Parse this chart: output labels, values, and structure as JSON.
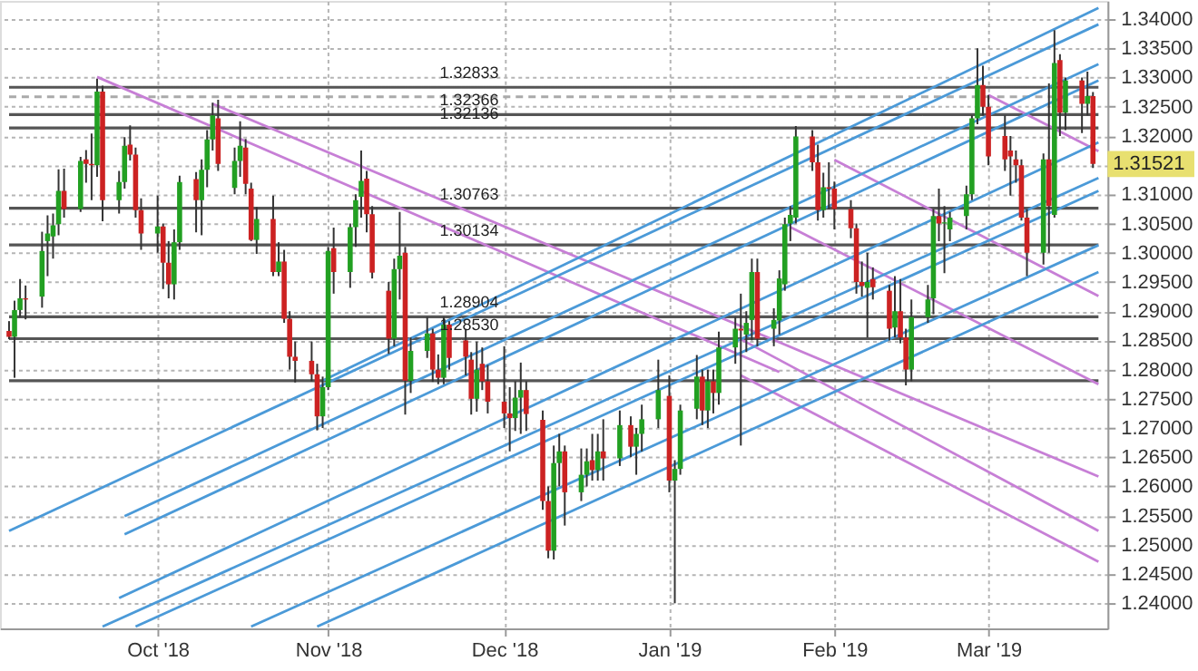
{
  "chart_data": {
    "type": "candlestick",
    "x": [
      "2018-09-04",
      "2018-09-05",
      "2018-09-06",
      "2018-09-07",
      "2018-09-10",
      "2018-09-11",
      "2018-09-12",
      "2018-09-13",
      "2018-09-14",
      "2018-09-17",
      "2018-09-18",
      "2018-09-19",
      "2018-09-20",
      "2018-09-21",
      "2018-09-24",
      "2018-09-25",
      "2018-09-26",
      "2018-09-27",
      "2018-09-28",
      "2018-10-01",
      "2018-10-02",
      "2018-10-03",
      "2018-10-04",
      "2018-10-05",
      "2018-10-08",
      "2018-10-09",
      "2018-10-10",
      "2018-10-11",
      "2018-10-12",
      "2018-10-15",
      "2018-10-16",
      "2018-10-17",
      "2018-10-18",
      "2018-10-19",
      "2018-10-22",
      "2018-10-23",
      "2018-10-24",
      "2018-10-25",
      "2018-10-26",
      "2018-10-29",
      "2018-10-30",
      "2018-10-31",
      "2018-11-01",
      "2018-11-02",
      "2018-11-05",
      "2018-11-06",
      "2018-11-07",
      "2018-11-08",
      "2018-11-09",
      "2018-11-12",
      "2018-11-13",
      "2018-11-14",
      "2018-11-15",
      "2018-11-16",
      "2018-11-19",
      "2018-11-20",
      "2018-11-21",
      "2018-11-22",
      "2018-11-23",
      "2018-11-26",
      "2018-11-27",
      "2018-11-28",
      "2018-11-29",
      "2018-11-30",
      "2018-12-03",
      "2018-12-04",
      "2018-12-05",
      "2018-12-06",
      "2018-12-07",
      "2018-12-10",
      "2018-12-11",
      "2018-12-12",
      "2018-12-13",
      "2018-12-14",
      "2018-12-17",
      "2018-12-18",
      "2018-12-19",
      "2018-12-20",
      "2018-12-21",
      "2018-12-24",
      "2018-12-26",
      "2018-12-27",
      "2018-12-28",
      "2018-12-31",
      "2019-01-02",
      "2019-01-03",
      "2019-01-04",
      "2019-01-07",
      "2019-01-08",
      "2019-01-09",
      "2019-01-10",
      "2019-01-11",
      "2019-01-14",
      "2019-01-15",
      "2019-01-16",
      "2019-01-17",
      "2019-01-18",
      "2019-01-21",
      "2019-01-22",
      "2019-01-23",
      "2019-01-24",
      "2019-01-25",
      "2019-01-28",
      "2019-01-29",
      "2019-01-30",
      "2019-01-31",
      "2019-02-01",
      "2019-02-04",
      "2019-02-05",
      "2019-02-06",
      "2019-02-07",
      "2019-02-08",
      "2019-02-11",
      "2019-02-12",
      "2019-02-13",
      "2019-02-14",
      "2019-02-15",
      "2019-02-18",
      "2019-02-19",
      "2019-02-20",
      "2019-02-21",
      "2019-02-22",
      "2019-02-25",
      "2019-02-26",
      "2019-02-27",
      "2019-02-28",
      "2019-03-01",
      "2019-03-04",
      "2019-03-05",
      "2019-03-06",
      "2019-03-07",
      "2019-03-08",
      "2019-03-11",
      "2019-03-12",
      "2019-03-13",
      "2019-03-14",
      "2019-03-15",
      "2019-03-18",
      "2019-03-19",
      "2019-03-20"
    ],
    "ohlc": [
      [
        1.2866,
        1.2883,
        1.2852,
        1.2856
      ],
      [
        1.2856,
        1.2918,
        1.2786,
        1.2902
      ],
      [
        1.2902,
        1.2955,
        1.289,
        1.2922
      ],
      [
        1.2922,
        1.2944,
        1.2886,
        1.292
      ],
      [
        1.2925,
        1.3036,
        1.2906,
        1.3003
      ],
      [
        1.302,
        1.3064,
        1.296,
        1.3033
      ],
      [
        1.3028,
        1.3067,
        1.299,
        1.3047
      ],
      [
        1.3049,
        1.3143,
        1.303,
        1.3106
      ],
      [
        1.3106,
        1.3144,
        1.306,
        1.3075
      ],
      [
        1.3075,
        1.3164,
        1.307,
        1.3157
      ],
      [
        1.316,
        1.3176,
        1.312,
        1.3152
      ],
      [
        1.3152,
        1.3204,
        1.309,
        1.315
      ],
      [
        1.315,
        1.3298,
        1.313,
        1.3276
      ],
      [
        1.3276,
        1.3286,
        1.3054,
        1.309
      ],
      [
        1.309,
        1.314,
        1.3067,
        1.3121
      ],
      [
        1.3121,
        1.3198,
        1.311,
        1.3183
      ],
      [
        1.3185,
        1.3218,
        1.3158,
        1.3168
      ],
      [
        1.3168,
        1.318,
        1.306,
        1.3073
      ],
      [
        1.3073,
        1.3093,
        1.3005,
        1.3033
      ],
      [
        1.3033,
        1.3098,
        1.3,
        1.3045
      ],
      [
        1.3045,
        1.305,
        1.2938,
        1.2983
      ],
      [
        1.2983,
        1.302,
        1.2922,
        1.2946
      ],
      [
        1.2946,
        1.304,
        1.292,
        1.3018
      ],
      [
        1.3018,
        1.3132,
        1.3005,
        1.3121
      ],
      [
        1.3126,
        1.3138,
        1.3035,
        1.309
      ],
      [
        1.309,
        1.316,
        1.303,
        1.3142
      ],
      [
        1.3142,
        1.321,
        1.3112,
        1.3194
      ],
      [
        1.3194,
        1.3257,
        1.3175,
        1.3235
      ],
      [
        1.323,
        1.3262,
        1.314,
        1.3152
      ],
      [
        1.3111,
        1.318,
        1.31,
        1.3157
      ],
      [
        1.3157,
        1.3225,
        1.313,
        1.3183
      ],
      [
        1.318,
        1.3195,
        1.31,
        1.3118
      ],
      [
        1.311,
        1.312,
        1.302,
        1.3022
      ],
      [
        1.3022,
        1.3078,
        1.2998,
        1.3058
      ],
      [
        1.3058,
        1.3098,
        1.296,
        1.2967
      ],
      [
        1.2967,
        1.3018,
        1.296,
        1.2985
      ],
      [
        1.2985,
        1.3005,
        1.288,
        1.2887
      ],
      [
        1.2887,
        1.29,
        1.28,
        1.2822
      ],
      [
        1.2822,
        1.2848,
        1.2778,
        1.2815
      ],
      [
        1.2815,
        1.2848,
        1.278,
        1.2792
      ],
      [
        1.2792,
        1.281,
        1.2696,
        1.272
      ],
      [
        1.272,
        1.2788,
        1.27,
        1.277
      ],
      [
        1.277,
        1.301,
        1.2765,
        1.3003
      ],
      [
        1.3008,
        1.3043,
        1.293,
        1.2967
      ],
      [
        1.2967,
        1.305,
        1.294,
        1.3044
      ],
      [
        1.3044,
        1.31,
        1.301,
        1.309
      ],
      [
        1.3096,
        1.3175,
        1.306,
        1.3123
      ],
      [
        1.3127,
        1.314,
        1.3035,
        1.3066
      ],
      [
        1.3066,
        1.308,
        1.2956,
        1.2966
      ],
      [
        1.2935,
        1.295,
        1.2827,
        1.2853
      ],
      [
        1.2853,
        1.299,
        1.284,
        1.2972
      ],
      [
        1.2972,
        1.307,
        1.292,
        1.2995
      ],
      [
        1.3,
        1.301,
        1.2723,
        1.2781
      ],
      [
        1.2781,
        1.2855,
        1.276,
        1.2832
      ],
      [
        1.2832,
        1.289,
        1.282,
        1.2862
      ],
      [
        1.2862,
        1.287,
        1.2779,
        1.28
      ],
      [
        1.28,
        1.2826,
        1.2775,
        1.2786
      ],
      [
        1.2786,
        1.289,
        1.2775,
        1.2877
      ],
      [
        1.2877,
        1.2883,
        1.28,
        1.282
      ],
      [
        1.285,
        1.287,
        1.279,
        1.2822
      ],
      [
        1.2817,
        1.283,
        1.2723,
        1.275
      ],
      [
        1.275,
        1.2848,
        1.2728,
        1.28
      ],
      [
        1.281,
        1.2838,
        1.2765,
        1.278
      ],
      [
        1.278,
        1.2808,
        1.2725,
        1.2745
      ],
      [
        1.2745,
        1.284,
        1.27,
        1.2725
      ],
      [
        1.2725,
        1.277,
        1.266,
        1.2717
      ],
      [
        1.2717,
        1.278,
        1.2695,
        1.2752
      ],
      [
        1.2752,
        1.2812,
        1.269,
        1.2765
      ],
      [
        1.2765,
        1.278,
        1.2695,
        1.2724
      ],
      [
        1.2714,
        1.273,
        1.256,
        1.2575
      ],
      [
        1.2575,
        1.26,
        1.2477,
        1.249
      ],
      [
        1.249,
        1.267,
        1.2475,
        1.264
      ],
      [
        1.264,
        1.269,
        1.26,
        1.266
      ],
      [
        1.266,
        1.267,
        1.2533,
        1.259
      ],
      [
        1.259,
        1.2665,
        1.2575,
        1.262
      ],
      [
        1.262,
        1.2665,
        1.26,
        1.2643
      ],
      [
        1.2645,
        1.269,
        1.261,
        1.2628
      ],
      [
        1.2628,
        1.269,
        1.261,
        1.266
      ],
      [
        1.266,
        1.2715,
        1.261,
        1.2648
      ],
      [
        1.2648,
        1.273,
        1.2635,
        1.2705
      ],
      [
        1.2705,
        1.272,
        1.265,
        1.2668
      ],
      [
        1.2668,
        1.27,
        1.262,
        1.269
      ],
      [
        1.269,
        1.274,
        1.266,
        1.2715
      ],
      [
        1.2715,
        1.2817,
        1.27,
        1.2765
      ],
      [
        1.2755,
        1.279,
        1.259,
        1.261
      ],
      [
        1.261,
        1.2645,
        1.24,
        1.263
      ],
      [
        1.263,
        1.274,
        1.262,
        1.273
      ],
      [
        1.2733,
        1.2825,
        1.2715,
        1.2788
      ],
      [
        1.2788,
        1.28,
        1.2705,
        1.273
      ],
      [
        1.273,
        1.28,
        1.27,
        1.278
      ],
      [
        1.278,
        1.28,
        1.2725,
        1.276
      ],
      [
        1.276,
        1.2865,
        1.274,
        1.2838
      ],
      [
        1.2838,
        1.289,
        1.281,
        1.287
      ],
      [
        1.287,
        1.293,
        1.267,
        1.2867
      ],
      [
        1.286,
        1.29,
        1.283,
        1.288
      ],
      [
        1.2885,
        1.299,
        1.285,
        1.2967
      ],
      [
        1.2967,
        1.299,
        1.284,
        1.2853
      ],
      [
        1.287,
        1.2905,
        1.284,
        1.2885
      ],
      [
        1.2884,
        1.297,
        1.286,
        1.2956
      ],
      [
        1.2946,
        1.306,
        1.2935,
        1.3049
      ],
      [
        1.305,
        1.308,
        1.302,
        1.3065
      ],
      [
        1.306,
        1.3217,
        1.305,
        1.3199
      ],
      [
        1.3199,
        1.321,
        1.314,
        1.3155
      ],
      [
        1.3155,
        1.3185,
        1.3055,
        1.3073
      ],
      [
        1.3073,
        1.3137,
        1.306,
        1.3112
      ],
      [
        1.3112,
        1.3155,
        1.3075,
        1.311
      ],
      [
        1.311,
        1.3122,
        1.304,
        1.3075
      ],
      [
        1.3075,
        1.309,
        1.3025,
        1.3042
      ],
      [
        1.3042,
        1.305,
        1.293,
        1.295
      ],
      [
        1.295,
        1.2985,
        1.2925,
        1.2943
      ],
      [
        1.294,
        1.3,
        1.2855,
        1.295
      ],
      [
        1.2955,
        1.2975,
        1.292,
        1.2941
      ],
      [
        1.2935,
        1.2945,
        1.285,
        1.287
      ],
      [
        1.2872,
        1.296,
        1.2855,
        1.29
      ],
      [
        1.29,
        1.2955,
        1.2845,
        1.2855
      ],
      [
        1.2855,
        1.287,
        1.2773,
        1.28
      ],
      [
        1.28,
        1.292,
        1.278,
        1.289
      ],
      [
        1.289,
        1.2945,
        1.288,
        1.292
      ],
      [
        1.2922,
        1.3075,
        1.2895,
        1.3063
      ],
      [
        1.3063,
        1.311,
        1.302,
        1.305
      ],
      [
        1.305,
        1.308,
        1.2965,
        1.3052
      ],
      [
        1.304,
        1.307,
        1.302,
        1.306
      ],
      [
        1.3063,
        1.3115,
        1.304,
        1.31
      ],
      [
        1.31,
        1.3235,
        1.309,
        1.323
      ],
      [
        1.323,
        1.335,
        1.322,
        1.3287
      ],
      [
        1.3287,
        1.332,
        1.3235,
        1.325
      ],
      [
        1.325,
        1.327,
        1.315,
        1.3165
      ],
      [
        1.32,
        1.3235,
        1.314,
        1.316
      ],
      [
        1.3175,
        1.32,
        1.3098,
        1.3165
      ],
      [
        1.316,
        1.3175,
        1.312,
        1.315
      ],
      [
        1.315,
        1.316,
        1.3055,
        1.306
      ],
      [
        1.306,
        1.3075,
        1.296,
        1.3
      ],
      [
        1.3,
        1.317,
        1.298,
        1.316
      ],
      [
        1.316,
        1.329,
        1.3,
        1.308
      ],
      [
        1.3065,
        1.3381,
        1.306,
        1.3325
      ],
      [
        1.333,
        1.334,
        1.32,
        1.324
      ],
      [
        1.324,
        1.33,
        1.321,
        1.3295
      ],
      [
        1.3295,
        1.33,
        1.3205,
        1.3255
      ],
      [
        1.3255,
        1.331,
        1.3235,
        1.3268
      ],
      [
        1.3268,
        1.3275,
        1.3145,
        1.31521
      ]
    ],
    "colors": [
      "#cc2222",
      "#22a022",
      "#22a022",
      "#cc2222",
      "#22a022",
      "#22a022",
      "#22a022",
      "#22a022",
      "#cc2222",
      "#22a022",
      "#cc2222",
      "#cc2222",
      "#22a022",
      "#cc2222",
      "#22a022",
      "#22a022",
      "#cc2222",
      "#cc2222",
      "#cc2222",
      "#22a022",
      "#cc2222",
      "#cc2222",
      "#22a022",
      "#22a022",
      "#cc2222",
      "#22a022",
      "#22a022",
      "#22a022",
      "#cc2222",
      "#22a022",
      "#22a022",
      "#cc2222",
      "#cc2222",
      "#22a022",
      "#cc2222",
      "#22a022",
      "#cc2222",
      "#cc2222",
      "#cc2222",
      "#cc2222",
      "#cc2222",
      "#22a022",
      "#22a022",
      "#cc2222",
      "#22a022",
      "#22a022",
      "#22a022",
      "#cc2222",
      "#cc2222",
      "#cc2222",
      "#22a022",
      "#22a022",
      "#cc2222",
      "#22a022",
      "#22a022",
      "#cc2222",
      "#cc2222",
      "#22a022",
      "#cc2222",
      "#cc2222",
      "#cc2222",
      "#22a022",
      "#cc2222",
      "#cc2222",
      "#cc2222",
      "#cc2222",
      "#22a022",
      "#22a022",
      "#cc2222",
      "#cc2222",
      "#cc2222",
      "#22a022",
      "#22a022",
      "#cc2222",
      "#22a022",
      "#22a022",
      "#cc2222",
      "#22a022",
      "#cc2222",
      "#22a022",
      "#cc2222",
      "#22a022",
      "#22a022",
      "#22a022",
      "#cc2222",
      "#22a022",
      "#22a022",
      "#22a022",
      "#cc2222",
      "#22a022",
      "#cc2222",
      "#22a022",
      "#22a022",
      "#cc2222",
      "#22a022",
      "#22a022",
      "#cc2222",
      "#22a022",
      "#22a022",
      "#22a022",
      "#22a022",
      "#22a022",
      "#cc2222",
      "#cc2222",
      "#22a022",
      "#cc2222",
      "#cc2222",
      "#cc2222",
      "#cc2222",
      "#cc2222",
      "#22a022",
      "#cc2222",
      "#cc2222",
      "#22a022",
      "#cc2222",
      "#cc2222",
      "#22a022",
      "#22a022",
      "#22a022",
      "#cc2222",
      "#22a022",
      "#22a022",
      "#22a022",
      "#22a022",
      "#22a022",
      "#cc2222",
      "#cc2222",
      "#cc2222",
      "#cc2222",
      "#cc2222",
      "#cc2222",
      "#cc2222",
      "#22a022",
      "#cc2222",
      "#22a022",
      "#cc2222",
      "#22a022",
      "#cc2222",
      "#22a022",
      "#cc2222"
    ],
    "series": [
      {
        "type": "line",
        "color": "#c77fd6",
        "x": [
          "2018-09-20",
          "2019-01-22"
        ],
        "values": [
          1.3301,
          1.2796
        ]
      },
      {
        "type": "line",
        "color": "#c77fd6",
        "x": [
          "2018-10-11",
          "2019-03-21"
        ],
        "values": [
          1.3255,
          1.2617
        ]
      },
      {
        "type": "line",
        "color": "#c77fd6",
        "x": [
          "2019-01-15",
          "2019-03-21"
        ],
        "values": [
          1.2852,
          1.2524
        ]
      },
      {
        "type": "line",
        "color": "#c77fd6",
        "x": [
          "2019-01-15",
          "2019-03-21"
        ],
        "values": [
          1.279,
          1.2471
        ]
      },
      {
        "type": "line",
        "color": "#c77fd6",
        "x": [
          "2019-01-24",
          "2019-03-21"
        ],
        "values": [
          1.3044,
          1.2775
        ]
      },
      {
        "type": "line",
        "color": "#c77fd6",
        "x": [
          "2019-02-01",
          "2019-03-21"
        ],
        "values": [
          1.3159,
          1.2926
        ]
      },
      {
        "type": "line",
        "color": "#c77fd6",
        "x": [
          "2019-03-01",
          "2019-03-21"
        ],
        "values": [
          1.327,
          1.3174
        ]
      },
      {
        "type": "line",
        "color": "#4b9ad8",
        "x": [
          "2018-09-04",
          "2019-03-21"
        ],
        "values": [
          1.2524,
          1.3391
        ]
      },
      {
        "type": "line",
        "color": "#4b9ad8",
        "x": [
          "2018-09-25",
          "2019-03-21"
        ],
        "values": [
          1.2549,
          1.3323
        ]
      },
      {
        "type": "line",
        "color": "#4b9ad8",
        "x": [
          "2018-09-25",
          "2019-03-21"
        ],
        "values": [
          1.2518,
          1.3295
        ]
      },
      {
        "type": "line",
        "color": "#4b9ad8",
        "x": [
          "2018-09-24",
          "2019-03-21"
        ],
        "values": [
          1.2409,
          1.3189
        ]
      },
      {
        "type": "line",
        "color": "#4b9ad8",
        "x": [
          "2018-09-21",
          "2019-03-21"
        ],
        "values": [
          1.236,
          1.3128
        ]
      },
      {
        "type": "line",
        "color": "#4b9ad8",
        "x": [
          "2018-09-27",
          "2019-03-21"
        ],
        "values": [
          1.236,
          1.3106
        ]
      },
      {
        "type": "line",
        "color": "#4b9ad8",
        "x": [
          "2018-10-18",
          "2019-03-21"
        ],
        "values": [
          1.236,
          1.3013
        ]
      },
      {
        "type": "line",
        "color": "#4b9ad8",
        "x": [
          "2018-10-30",
          "2019-03-21"
        ],
        "values": [
          1.236,
          1.2967
        ]
      },
      {
        "type": "line",
        "color": "#4b9ad8",
        "x": [
          "2018-10-31",
          "2019-03-21"
        ],
        "values": [
          1.2781,
          1.3419
        ]
      }
    ],
    "ref_lines": [
      {
        "axis": "y",
        "value": 1.32833,
        "label": "1.32833",
        "color": "#555555"
      },
      {
        "axis": "y",
        "value": 1.3267,
        "label": null,
        "color": "#aaaaaa",
        "line_style": "dashed"
      },
      {
        "axis": "y",
        "value": 1.32366,
        "label": "1.32366",
        "color": "#555555"
      },
      {
        "axis": "y",
        "value": 1.32136,
        "label": "1.32136",
        "color": "#555555"
      },
      {
        "axis": "y",
        "value": 1.30763,
        "label": "1.30763",
        "color": "#555555"
      },
      {
        "axis": "y",
        "value": 1.30134,
        "label": "1.30134",
        "color": "#555555"
      },
      {
        "axis": "y",
        "value": 1.28904,
        "label": "1.28904",
        "color": "#555555"
      },
      {
        "axis": "y",
        "value": 1.2853,
        "label": "1.28530",
        "color": "#555555"
      },
      {
        "axis": "y",
        "value": 1.2781,
        "label": null,
        "color": "#555555"
      }
    ],
    "annotations": [
      "1.31521"
    ],
    "xlim": [
      "2018-09-04",
      "2019-03-21"
    ],
    "xticks": [
      {
        "value": "2018-10-01",
        "label": "Oct '18"
      },
      {
        "value": "2018-11-01",
        "label": "Nov '18"
      },
      {
        "value": "2018-12-03",
        "label": "Dec '18"
      },
      {
        "value": "2019-01-02",
        "label": "Jan '19"
      },
      {
        "value": "2019-02-01",
        "label": "Feb '19"
      },
      {
        "value": "2019-03-01",
        "label": "Mar '19"
      }
    ],
    "ylim": [
      1.2357,
      1.3431
    ],
    "yticks": [
      {
        "value": 1.24,
        "label": "1.24000"
      },
      {
        "value": 1.245,
        "label": "1.24500"
      },
      {
        "value": 1.25,
        "label": "1.25000"
      },
      {
        "value": 1.255,
        "label": "1.25500"
      },
      {
        "value": 1.26,
        "label": "1.26000"
      },
      {
        "value": 1.265,
        "label": "1.26500"
      },
      {
        "value": 1.27,
        "label": "1.27000"
      },
      {
        "value": 1.275,
        "label": "1.27500"
      },
      {
        "value": 1.28,
        "label": "1.28000"
      },
      {
        "value": 1.285,
        "label": "1.28500"
      },
      {
        "value": 1.29,
        "label": "1.29000"
      },
      {
        "value": 1.295,
        "label": "1.29500"
      },
      {
        "value": 1.3,
        "label": "1.30000"
      },
      {
        "value": 1.305,
        "label": "1.30500"
      },
      {
        "value": 1.31,
        "label": "1.31000"
      },
      {
        "value": 1.315,
        "label": null
      },
      {
        "value": 1.32,
        "label": "1.32000"
      },
      {
        "value": 1.325,
        "label": "1.32500"
      },
      {
        "value": 1.33,
        "label": "1.33000"
      },
      {
        "value": 1.335,
        "label": "1.33500"
      },
      {
        "value": 1.34,
        "label": "1.34000"
      }
    ],
    "grid": true
  }
}
